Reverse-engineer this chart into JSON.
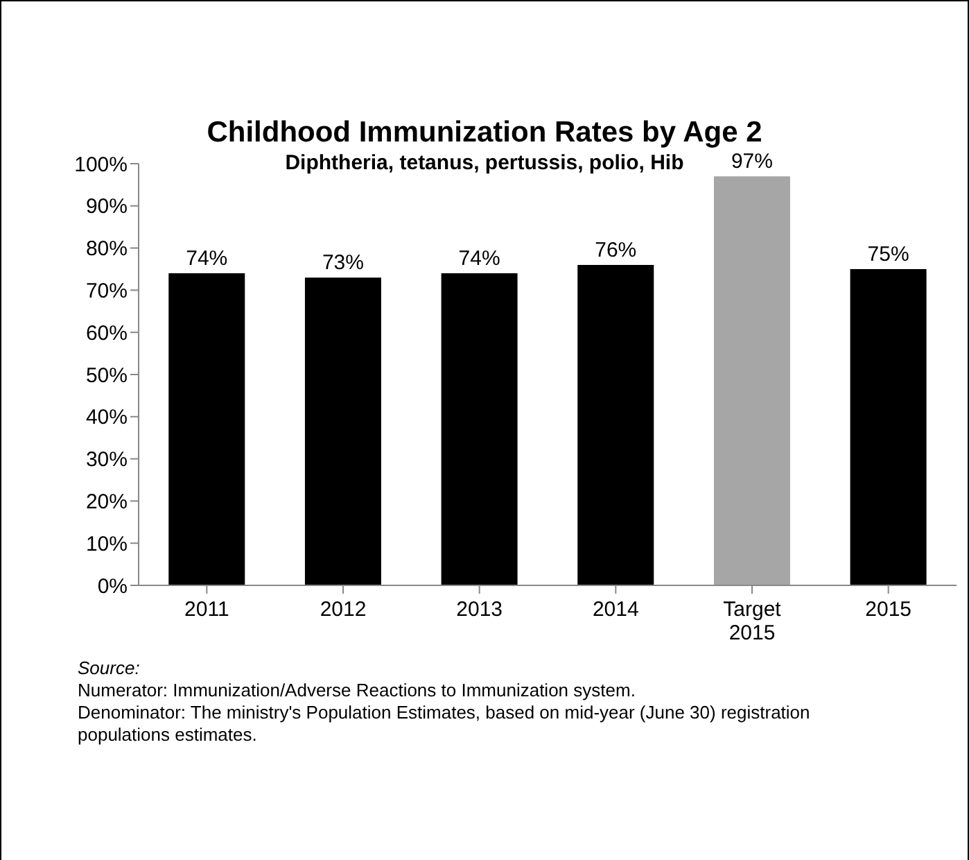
{
  "chart_data": {
    "type": "bar",
    "title": "Childhood Immunization Rates by Age 2",
    "subtitle": "Diphtheria, tetanus, pertussis, polio, Hib",
    "categories": [
      "2011",
      "2012",
      "2013",
      "2014",
      "Target 2015",
      "2015"
    ],
    "values": [
      74,
      73,
      74,
      76,
      97,
      75
    ],
    "colors": [
      "#000000",
      "#000000",
      "#000000",
      "#000000",
      "#a6a6a6",
      "#000000"
    ],
    "value_labels": [
      "74%",
      "73%",
      "74%",
      "76%",
      "97%",
      "75%"
    ],
    "ylim": [
      0,
      100
    ],
    "yticks": [
      {
        "value": 0,
        "label": "0%"
      },
      {
        "value": 10,
        "label": "10%"
      },
      {
        "value": 20,
        "label": "20%"
      },
      {
        "value": 30,
        "label": "30%"
      },
      {
        "value": 40,
        "label": "40%"
      },
      {
        "value": 50,
        "label": "50%"
      },
      {
        "value": 60,
        "label": "60%"
      },
      {
        "value": 70,
        "label": "70%"
      },
      {
        "value": 80,
        "label": "80%"
      },
      {
        "value": 90,
        "label": "90%"
      },
      {
        "value": 100,
        "label": "100%"
      }
    ],
    "annotations": [
      "Source:",
      "Numerator: Immunization/Adverse Reactions to Immunization system.",
      "Denominator: The ministry's Population Estimates, based on mid-year (June 30) registration populations estimates."
    ]
  }
}
